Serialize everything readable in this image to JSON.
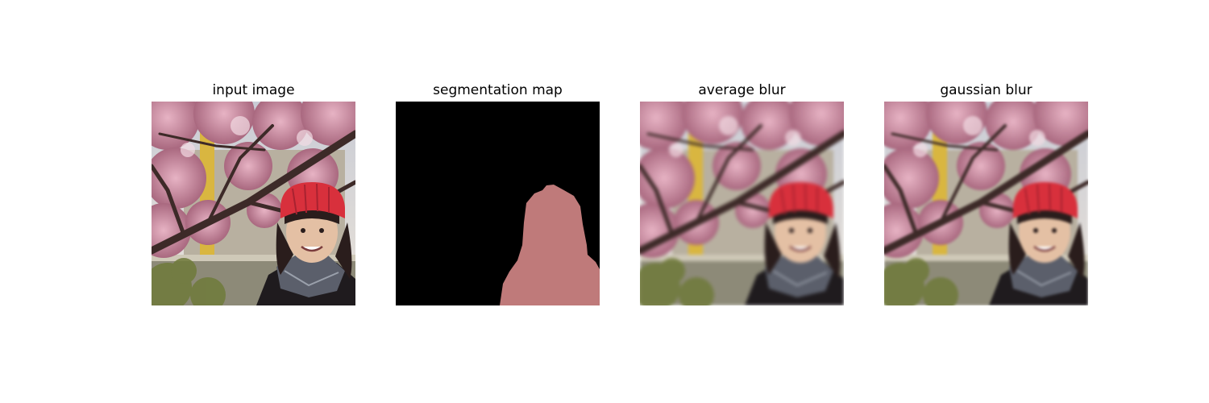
{
  "panels": [
    {
      "title": "input image"
    },
    {
      "title": "segmentation map"
    },
    {
      "title": "average blur"
    },
    {
      "title": "gaussian blur"
    }
  ],
  "colors": {
    "segmentation_background": "#000000",
    "segmentation_person": "#bf7a7a",
    "hat": "#d8303c",
    "blossom": "#c98aa0"
  }
}
